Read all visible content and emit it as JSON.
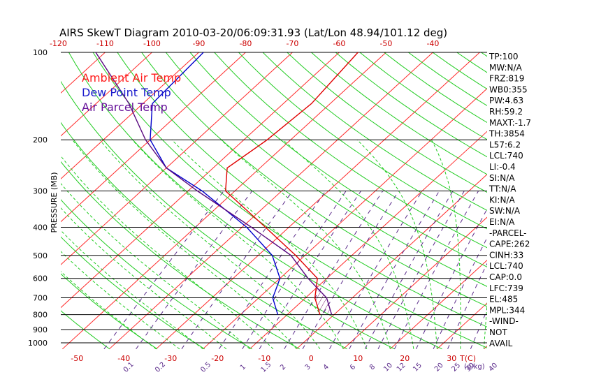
{
  "chart_data": {
    "type": "line",
    "title": "AIRS SkewT Diagram 2010-03-20/06:09:31.93 (Lat/Lon 48.94/101.12 deg)",
    "ylabel": "PRESSURE (MB)",
    "xlabel": "T(C)",
    "mixing_ratio_unit": "g/kg",
    "pressure_ticks": [
      "100",
      "200",
      "300",
      "400",
      "500",
      "600",
      "700",
      "800",
      "900",
      "1000"
    ],
    "pressure_values": [
      100,
      200,
      300,
      400,
      500,
      600,
      700,
      800,
      900,
      1000
    ],
    "top_temperature_ticks": [
      "-120",
      "-110",
      "-100",
      "-90",
      "-80",
      "-70",
      "-60",
      "-50",
      "-40"
    ],
    "top_temperature_values": [
      -120,
      -110,
      -100,
      -90,
      -80,
      -70,
      -60,
      -50,
      -40
    ],
    "bottom_temperature_ticks": [
      "-50",
      "-40",
      "-30",
      "-20",
      "-10",
      "0",
      "10",
      "20",
      "30"
    ],
    "bottom_temperature_values": [
      -50,
      -40,
      -30,
      -20,
      -10,
      0,
      10,
      20,
      30
    ],
    "mixing_ratio_ticks": [
      "0.1",
      "0.2",
      "0.5",
      "1",
      "1.5",
      "2",
      "3",
      "4",
      "6",
      "8",
      "10",
      "12",
      "15",
      "20",
      "25",
      "30",
      "40"
    ],
    "mixing_ratio_values": [
      0.1,
      0.2,
      0.5,
      1,
      1.5,
      2,
      3,
      4,
      6,
      8,
      10,
      12,
      15,
      20,
      25,
      30,
      40
    ],
    "legend": [
      {
        "label": "Ambient Air Temp",
        "color": "#ff1a1a"
      },
      {
        "label": "Dew Point Temp",
        "color": "#1a1acc"
      },
      {
        "label": "Air Parcel Temp",
        "color": "#661199"
      }
    ],
    "series": [
      {
        "name": "Ambient Air Temp",
        "color": "#e00000",
        "points": [
          [
            100,
            -56
          ],
          [
            150,
            -54
          ],
          [
            200,
            -55
          ],
          [
            250,
            -57
          ],
          [
            300,
            -52
          ],
          [
            400,
            -35
          ],
          [
            500,
            -22
          ],
          [
            600,
            -12
          ],
          [
            700,
            -8
          ],
          [
            800,
            -3
          ]
        ]
      },
      {
        "name": "Dew Point Temp",
        "color": "#0000cc",
        "points": [
          [
            100,
            -89
          ],
          [
            150,
            -88
          ],
          [
            200,
            -80
          ],
          [
            250,
            -70
          ],
          [
            300,
            -57
          ],
          [
            400,
            -39
          ],
          [
            500,
            -27
          ],
          [
            600,
            -20
          ],
          [
            700,
            -17
          ],
          [
            800,
            -12
          ]
        ]
      },
      {
        "name": "Air Parcel Temp",
        "color": "#5a0a80",
        "points": [
          [
            100,
            -112
          ],
          [
            150,
            -93
          ],
          [
            200,
            -81
          ],
          [
            250,
            -70
          ],
          [
            300,
            -58
          ],
          [
            400,
            -38
          ],
          [
            500,
            -23
          ],
          [
            600,
            -14
          ],
          [
            700,
            -5.5
          ],
          [
            800,
            -0.5
          ]
        ]
      }
    ],
    "isotherm_color": "#ff2a2a",
    "dry_adiabat_color": "#22cc22",
    "moist_adiabat_color": "#22cc22",
    "mixing_ratio_color": "#5a2a8a",
    "isobar_color": "#000000"
  },
  "indices": [
    "TP:100",
    "MW:N/A",
    "FRZ:819",
    "WB0:355",
    "PW:4.63",
    "RH:59.2",
    "MAXT:-1.7",
    "TH:3854",
    "L57:6.2",
    "LCL:740",
    "LI:-0.4",
    "SI:N/A",
    "TT:N/A",
    "KI:N/A",
    "SW:N/A",
    "EI:N/A",
    "-PARCEL-",
    "CAPE:262",
    "CINH:33",
    "LCL:740",
    "CAP:0.0",
    "LFC:739",
    "EL:485",
    "MPL:344",
    "-WIND-",
    "NOT",
    "AVAIL"
  ]
}
